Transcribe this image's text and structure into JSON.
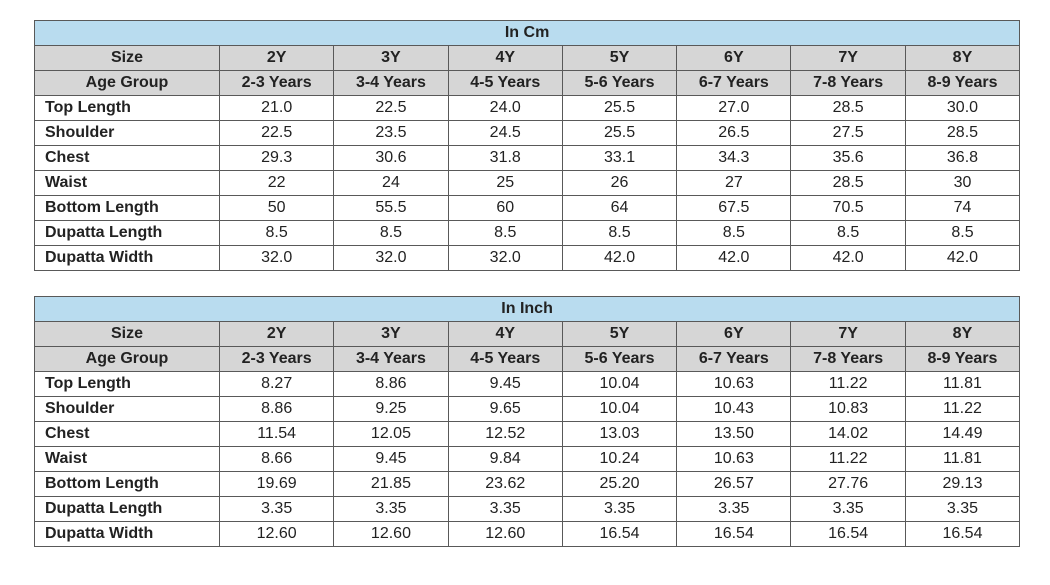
{
  "sizes": [
    "2Y",
    "3Y",
    "4Y",
    "5Y",
    "6Y",
    "7Y",
    "8Y"
  ],
  "age_groups": [
    "2-3 Years",
    "3-4 Years",
    "4-5 Years",
    "5-6 Years",
    "6-7 Years",
    "7-8 Years",
    "8-9 Years"
  ],
  "size_label": "Size",
  "age_group_label": "Age Group",
  "tables": [
    {
      "title": "In Cm",
      "rows": [
        {
          "label": "Top Length",
          "values": [
            "21.0",
            "22.5",
            "24.0",
            "25.5",
            "27.0",
            "28.5",
            "30.0"
          ]
        },
        {
          "label": "Shoulder",
          "values": [
            "22.5",
            "23.5",
            "24.5",
            "25.5",
            "26.5",
            "27.5",
            "28.5"
          ]
        },
        {
          "label": "Chest",
          "values": [
            "29.3",
            "30.6",
            "31.8",
            "33.1",
            "34.3",
            "35.6",
            "36.8"
          ]
        },
        {
          "label": "Waist",
          "values": [
            "22",
            "24",
            "25",
            "26",
            "27",
            "28.5",
            "30"
          ]
        },
        {
          "label": "Bottom Length",
          "values": [
            "50",
            "55.5",
            "60",
            "64",
            "67.5",
            "70.5",
            "74"
          ]
        },
        {
          "label": "Dupatta Length",
          "values": [
            "8.5",
            "8.5",
            "8.5",
            "8.5",
            "8.5",
            "8.5",
            "8.5"
          ]
        },
        {
          "label": "Dupatta Width",
          "values": [
            "32.0",
            "32.0",
            "32.0",
            "42.0",
            "42.0",
            "42.0",
            "42.0"
          ]
        }
      ]
    },
    {
      "title": "In Inch",
      "rows": [
        {
          "label": "Top Length",
          "values": [
            "8.27",
            "8.86",
            "9.45",
            "10.04",
            "10.63",
            "11.22",
            "11.81"
          ]
        },
        {
          "label": "Shoulder",
          "values": [
            "8.86",
            "9.25",
            "9.65",
            "10.04",
            "10.43",
            "10.83",
            "11.22"
          ]
        },
        {
          "label": "Chest",
          "values": [
            "11.54",
            "12.05",
            "12.52",
            "13.03",
            "13.50",
            "14.02",
            "14.49"
          ]
        },
        {
          "label": "Waist",
          "values": [
            "8.66",
            "9.45",
            "9.84",
            "10.24",
            "10.63",
            "11.22",
            "11.81"
          ]
        },
        {
          "label": "Bottom Length",
          "values": [
            "19.69",
            "21.85",
            "23.62",
            "25.20",
            "26.57",
            "27.76",
            "29.13"
          ]
        },
        {
          "label": "Dupatta Length",
          "values": [
            "3.35",
            "3.35",
            "3.35",
            "3.35",
            "3.35",
            "3.35",
            "3.35"
          ]
        },
        {
          "label": "Dupatta Width",
          "values": [
            "12.60",
            "12.60",
            "12.60",
            "16.54",
            "16.54",
            "16.54",
            "16.54"
          ]
        }
      ]
    }
  ]
}
